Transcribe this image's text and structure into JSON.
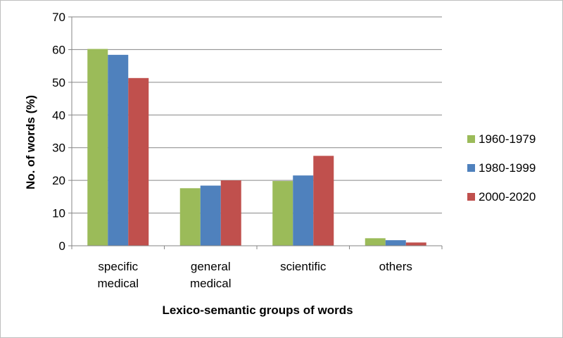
{
  "chart_data": {
    "type": "bar",
    "title": "",
    "xlabel": "Lexico-semantic groups of words",
    "ylabel": "No. of words (%)",
    "ylim": [
      0,
      70
    ],
    "yticks": [
      0,
      10,
      20,
      30,
      40,
      50,
      60,
      70
    ],
    "grid": true,
    "legend_position": "right",
    "categories": [
      [
        "specific",
        "medical"
      ],
      [
        "general",
        "medical"
      ],
      [
        "scientific"
      ],
      [
        "others"
      ]
    ],
    "series": [
      {
        "name": "1960-1979",
        "color": "#9bbb59",
        "values": [
          60.2,
          17.6,
          19.8,
          2.3
        ]
      },
      {
        "name": "1980-1999",
        "color": "#4f81bd",
        "values": [
          58.4,
          18.4,
          21.5,
          1.7
        ]
      },
      {
        "name": "2000-2020",
        "color": "#c0504d",
        "values": [
          51.3,
          20.0,
          27.5,
          1.0
        ]
      }
    ]
  }
}
